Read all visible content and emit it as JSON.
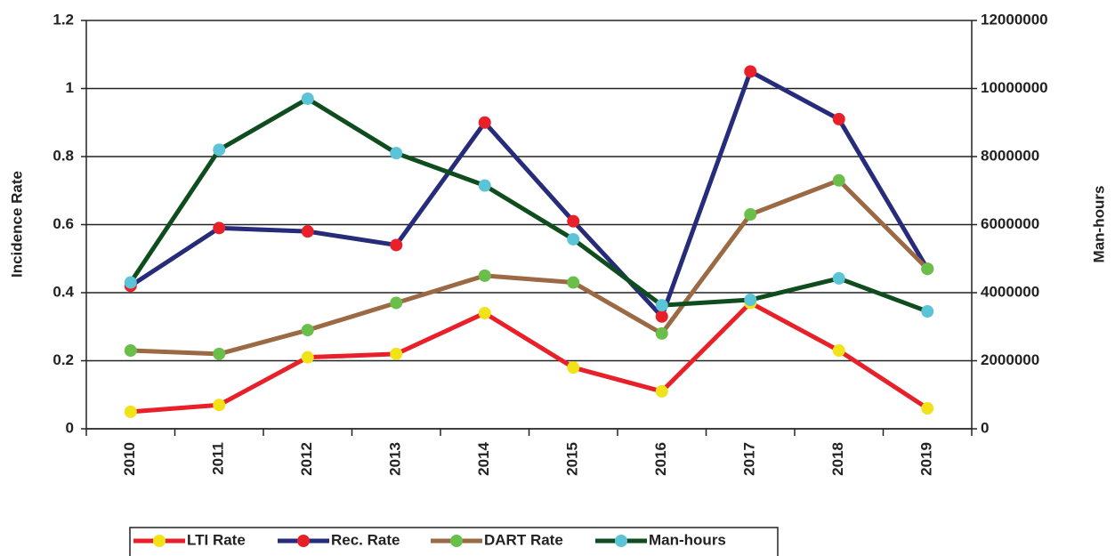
{
  "chart_data": {
    "type": "line",
    "categories": [
      "2010",
      "2011",
      "2012",
      "2013",
      "2014",
      "2015",
      "2016",
      "2017",
      "2018",
      "2019"
    ],
    "ylabel": "Incidence Rate",
    "y2label": "Man-hours",
    "ylim": [
      0,
      1.2
    ],
    "yticks": [
      0,
      0.2,
      0.4,
      0.6,
      0.8,
      1,
      1.2
    ],
    "y2lim": [
      0,
      12000000
    ],
    "y2ticks": [
      0,
      2000000,
      4000000,
      6000000,
      8000000,
      10000000,
      12000000
    ],
    "grid": true,
    "legend": "bottom",
    "series": [
      {
        "name": "LTI Rate",
        "color": "#e8202a",
        "marker_color": "#f2e21a",
        "values": [
          0.05,
          0.07,
          0.21,
          0.22,
          0.34,
          0.18,
          0.11,
          0.37,
          0.23,
          0.06
        ]
      },
      {
        "name": "Rec. Rate",
        "color": "#262b7a",
        "marker_color": "#e8202a",
        "values": [
          0.42,
          0.59,
          0.58,
          0.54,
          0.9,
          0.61,
          0.33,
          1.05,
          0.91,
          0.47
        ]
      },
      {
        "name": "DART Rate",
        "color": "#9b6a44",
        "marker_color": "#6abf4b",
        "values": [
          0.23,
          0.22,
          0.29,
          0.37,
          0.45,
          0.43,
          0.28,
          0.63,
          0.73,
          0.47
        ]
      },
      {
        "name": "Man-hours",
        "color": "#0f4d1f",
        "marker_color": "#5bc4d6",
        "axis": "y2",
        "values": [
          4300000,
          8200000,
          9700000,
          8100000,
          7150000,
          5570000,
          3630000,
          3790000,
          4420000,
          3450000
        ]
      }
    ]
  }
}
